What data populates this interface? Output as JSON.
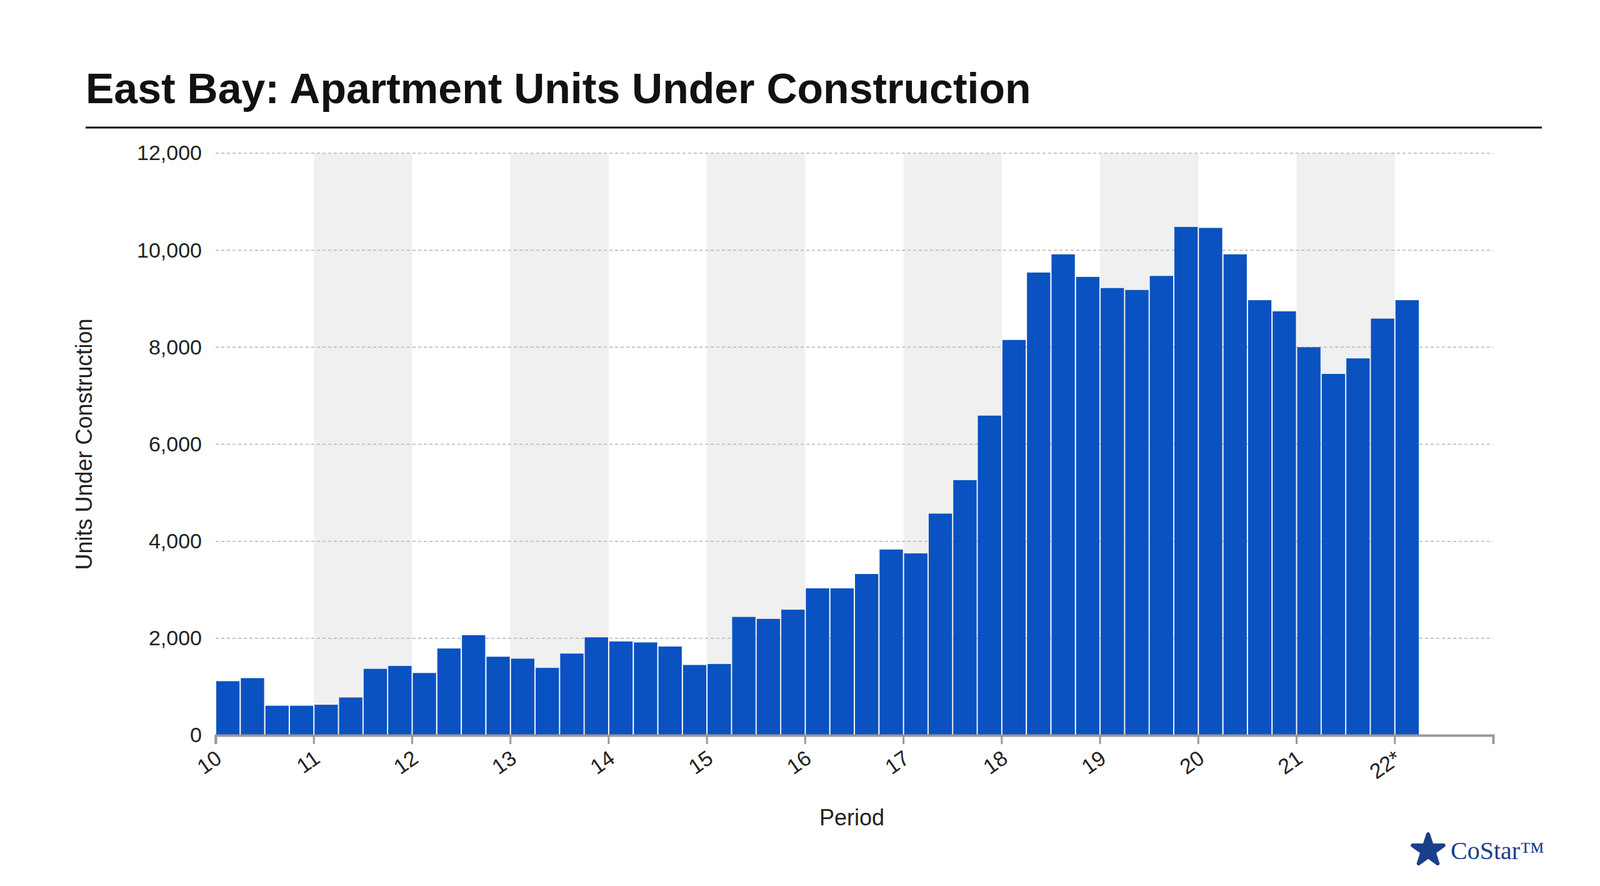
{
  "chart_data": {
    "type": "bar",
    "title": "East Bay: Apartment Units Under Construction",
    "y_label": "Units Under Construction",
    "x_label": "Period",
    "source": "CoStar™",
    "categories": [
      "10",
      null,
      null,
      null,
      "11",
      null,
      null,
      null,
      "12",
      null,
      null,
      null,
      "13",
      null,
      null,
      null,
      "14",
      null,
      null,
      null,
      "15",
      null,
      null,
      null,
      "16",
      null,
      null,
      null,
      "17",
      null,
      null,
      null,
      "18",
      null,
      null,
      null,
      "19",
      null,
      null,
      null,
      "20",
      null,
      null,
      null,
      "21",
      null,
      null,
      null,
      "22*",
      null,
      null,
      null
    ],
    "values": [
      1116,
      1179,
      610,
      610,
      630,
      780,
      1370,
      1430,
      1285,
      1790,
      2065,
      1620,
      1580,
      1390,
      1685,
      2020,
      1935,
      1915,
      1830,
      1450,
      1470,
      2440,
      2400,
      2590,
      3030,
      3030,
      3325,
      3830,
      3750,
      4570,
      5260,
      6590,
      8150,
      9540,
      9915,
      9450,
      9220,
      9180,
      9470,
      10480,
      10460,
      9915,
      8970,
      8740,
      8000,
      7450,
      7770,
      8590,
      8970,
      null,
      null,
      null
    ],
    "color": "#0a52c2",
    "ylim": [
      0,
      12000
    ],
    "yticks": [
      0,
      {
        "value": 2000,
        "label": "2,000"
      },
      {
        "value": 4000,
        "label": "4,000"
      },
      {
        "value": 6000,
        "label": "6,000"
      },
      {
        "value": 8000,
        "label": "8,000"
      },
      {
        "value": 10000,
        "label": "10,000"
      },
      {
        "value": 12000,
        "label": "12,000"
      }
    ],
    "grid": true
  }
}
